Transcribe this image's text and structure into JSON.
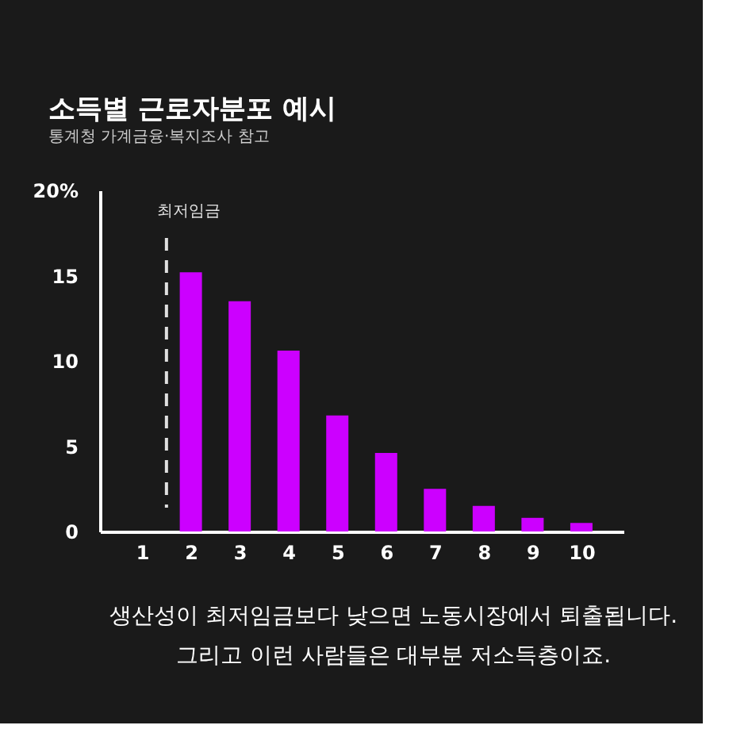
{
  "chart_data": {
    "type": "bar",
    "title": "소득별 근로자분포 예시",
    "subtitle": "통계청 가계금융·복지조사 참고",
    "x": [
      2,
      3,
      4,
      5,
      6,
      7,
      8,
      9,
      10
    ],
    "values": [
      15.2,
      13.5,
      10.6,
      6.8,
      4.6,
      2.5,
      1.5,
      0.8,
      0.5
    ],
    "color": "#cc00ff",
    "xlim": [
      0.3,
      10.7
    ],
    "xticks": [
      1,
      2,
      3,
      4,
      5,
      6,
      7,
      8,
      9,
      10
    ],
    "ylim": [
      0,
      20
    ],
    "yticks": [
      0,
      5,
      10,
      15,
      {
        "value": 20,
        "label": "20%"
      }
    ],
    "grid": false,
    "ref_lines": [
      {
        "axis": "x",
        "value": 1.5,
        "label": "최저임금",
        "color": "#e0e0e0",
        "line_style": "dashed"
      }
    ],
    "annotations": [
      "생산성이 최저임금보다 낮으면 노동시장에서 퇴출됩니다.",
      "그리고 이런 사람들은 대부분 저소득층이죠."
    ]
  }
}
